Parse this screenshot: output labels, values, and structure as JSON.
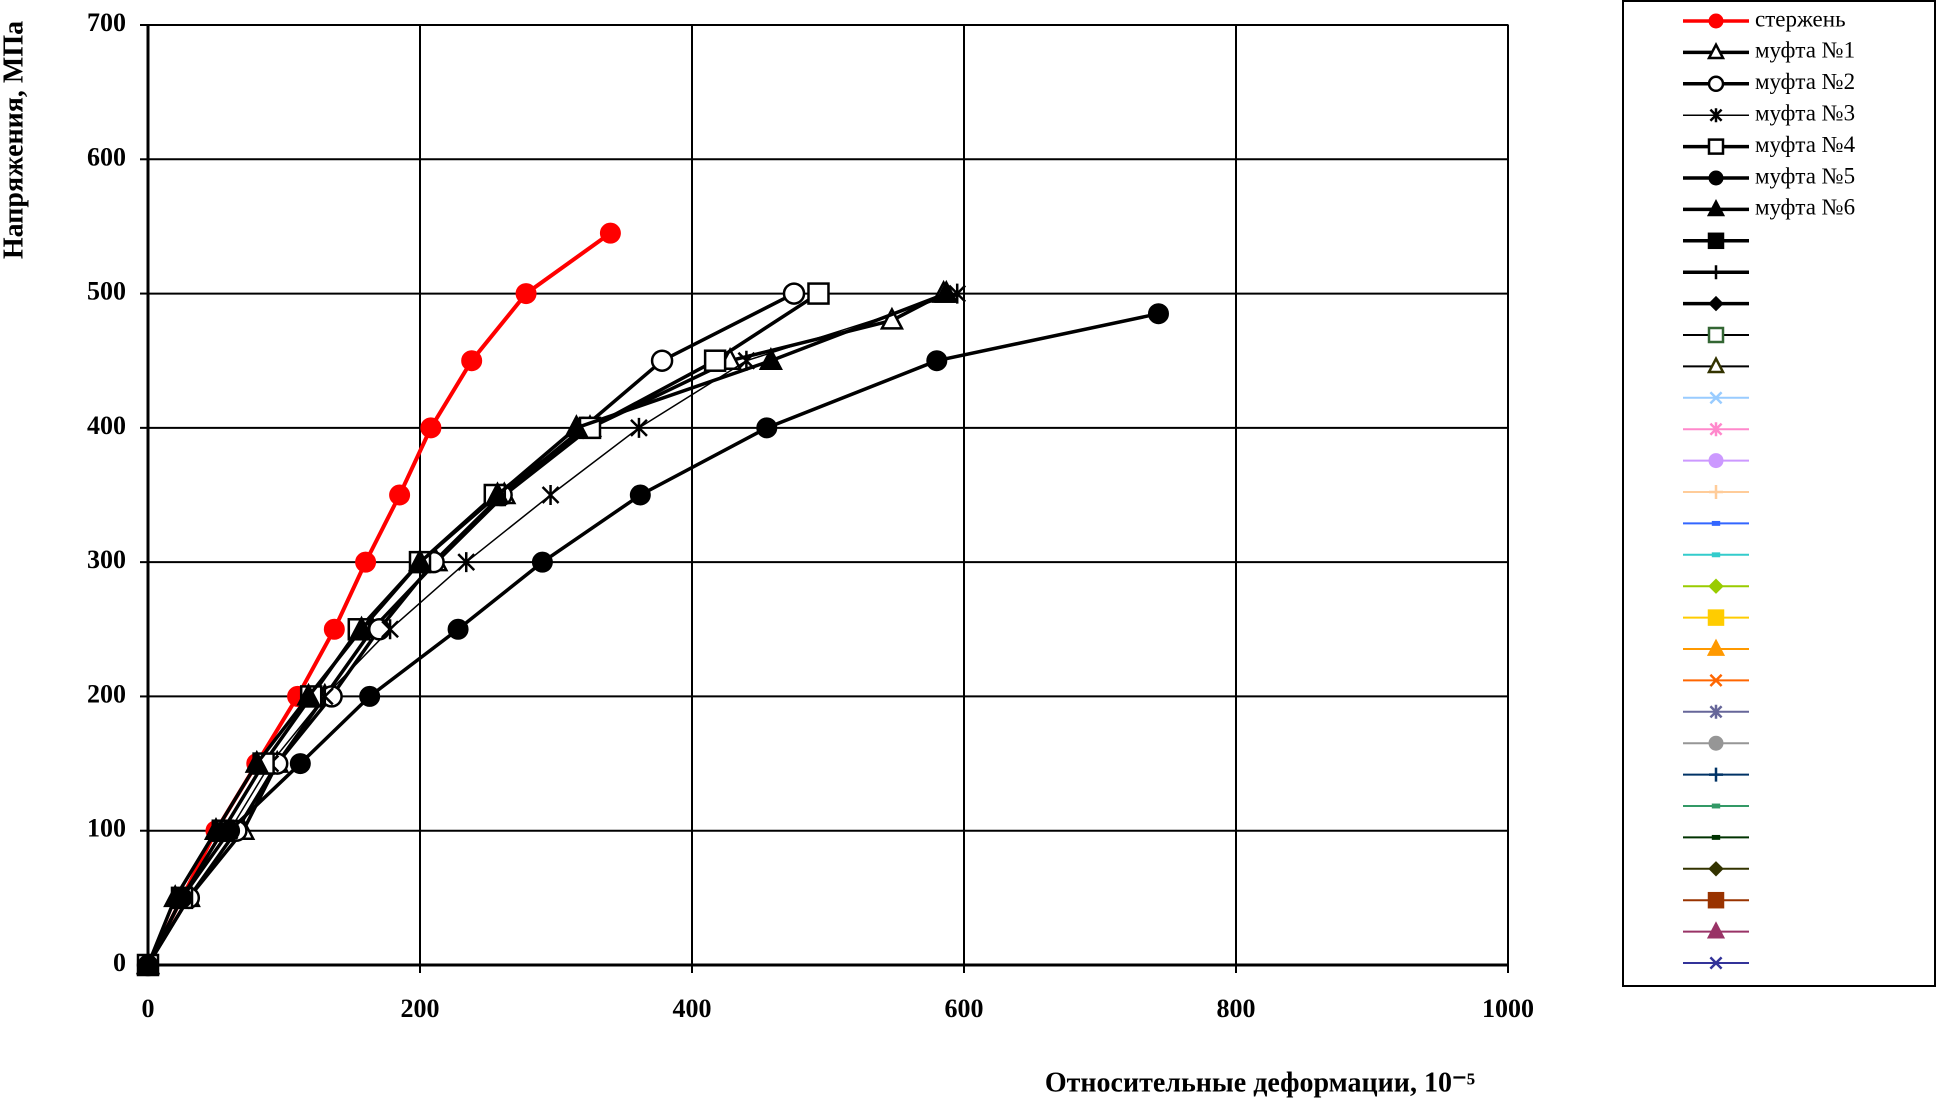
{
  "chart_data": {
    "type": "line",
    "xlabel": "Относительные деформации, 10⁻⁵",
    "ylabel": "Напряжения, МПа",
    "xlim": [
      0,
      1000
    ],
    "xticks": [
      0,
      200,
      400,
      600,
      800,
      1000
    ],
    "ylim": [
      0,
      700
    ],
    "yticks": [
      0,
      100,
      200,
      300,
      400,
      500,
      600,
      700
    ],
    "grid": true,
    "legend": "right",
    "series": [
      {
        "name": "стержень",
        "color": "#ff0000",
        "marker": "circle-filled",
        "x": [
          0,
          25,
          50,
          80,
          110,
          137,
          160,
          185,
          208,
          238,
          278,
          340
        ],
        "values": [
          0,
          50,
          100,
          150,
          200,
          250,
          300,
          350,
          400,
          450,
          500,
          545
        ]
      },
      {
        "name": "муфта №1",
        "color": "#000000",
        "marker": "triangle-open",
        "x": [
          0,
          30,
          70,
          95,
          130,
          165,
          212,
          262,
          325,
          428,
          547,
          585
        ],
        "values": [
          0,
          50,
          100,
          150,
          200,
          250,
          300,
          350,
          400,
          450,
          480,
          500
        ]
      },
      {
        "name": "муфта №2",
        "color": "#000000",
        "marker": "circle-open",
        "x": [
          0,
          30,
          65,
          95,
          135,
          170,
          210,
          260,
          320,
          378,
          475
        ],
        "values": [
          0,
          50,
          100,
          150,
          200,
          250,
          300,
          350,
          400,
          450,
          500
        ]
      },
      {
        "name": "муфта №3",
        "color": "#000000",
        "marker": "asterisk",
        "x": [
          0,
          25,
          60,
          90,
          130,
          178,
          234,
          296,
          361,
          440,
          595
        ],
        "values": [
          0,
          50,
          100,
          150,
          200,
          250,
          300,
          350,
          400,
          450,
          500
        ]
      },
      {
        "name": "муфта №4",
        "color": "#000000",
        "marker": "square-open",
        "x": [
          0,
          25,
          55,
          85,
          120,
          155,
          200,
          255,
          325,
          417,
          493
        ],
        "values": [
          0,
          50,
          100,
          150,
          200,
          250,
          300,
          350,
          400,
          450,
          500
        ]
      },
      {
        "name": "муфта №5",
        "color": "#000000",
        "marker": "circle-filled",
        "x": [
          0,
          25,
          60,
          112,
          163,
          228,
          290,
          362,
          455,
          580,
          743
        ],
        "values": [
          0,
          50,
          100,
          150,
          200,
          250,
          300,
          350,
          400,
          450,
          485
        ]
      },
      {
        "name": "муфта №6",
        "color": "#000000",
        "marker": "triangle-filled",
        "x": [
          0,
          20,
          50,
          80,
          118,
          157,
          200,
          257,
          315,
          458,
          587
        ],
        "values": [
          0,
          50,
          100,
          150,
          200,
          250,
          300,
          350,
          400,
          450,
          500
        ]
      }
    ]
  }
}
